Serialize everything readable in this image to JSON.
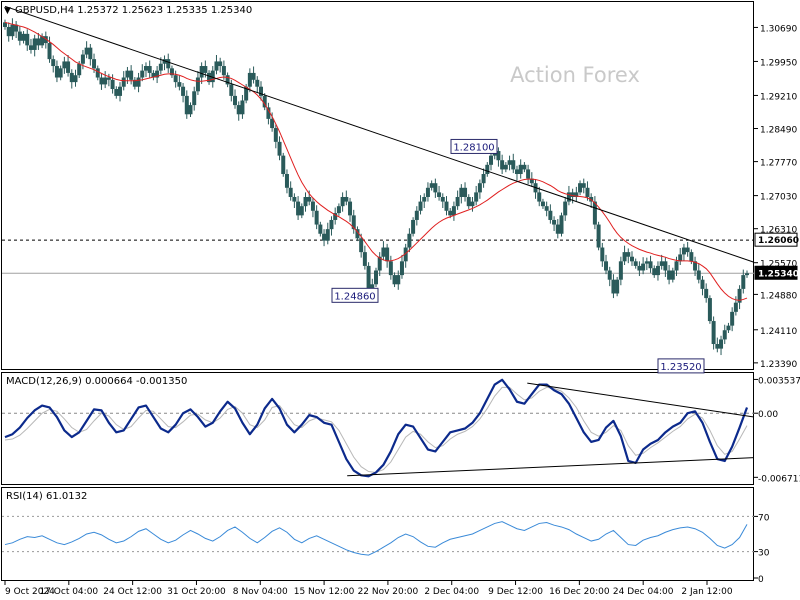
{
  "chart_data": [
    {
      "type": "candlestick",
      "symbol_header": "GBPUSD,H4  1.25372 1.25623 1.25335 1.25340",
      "watermark": "Action Forex",
      "y_range": [
        1.233,
        1.312
      ],
      "price_ticks": [
        "1.30690",
        "1.29950",
        "1.29210",
        "1.28490",
        "1.27770",
        "1.27030",
        "1.26310",
        "1.25570",
        "1.24880",
        "1.24110",
        "1.23390"
      ],
      "highlight_labels": [
        {
          "text": "1.26060",
          "price": 1.2606,
          "style": "dashed-level"
        },
        {
          "text": "1.25340",
          "price": 1.2534,
          "style": "current-price"
        }
      ],
      "annotations": [
        {
          "text": "1.28100",
          "price": 1.281
        },
        {
          "text": "1.24860",
          "price": 1.2486
        },
        {
          "text": "1.23520",
          "price": 1.2352
        }
      ],
      "ma_color": "#e02020",
      "candle_color": "#2a5a5a",
      "trendline_color": "#000000",
      "approx_closes": [
        1.307,
        1.305,
        1.3075,
        1.306,
        1.304,
        1.3055,
        1.303,
        1.302,
        1.3045,
        1.303,
        1.305,
        1.3035,
        1.3,
        1.2985,
        1.296,
        1.298,
        1.2995,
        1.297,
        1.295,
        1.2965,
        1.299,
        1.301,
        1.3025,
        1.3,
        1.298,
        1.296,
        1.2945,
        1.296,
        1.2955,
        1.2935,
        1.292,
        1.294,
        1.296,
        1.2975,
        1.2955,
        1.294,
        1.296,
        1.2975,
        1.2985,
        1.297,
        1.296,
        1.2975,
        1.299,
        1.3,
        1.298,
        1.2965,
        1.295,
        1.294,
        1.292,
        1.288,
        1.29,
        1.293,
        1.296,
        1.2985,
        1.297,
        1.295,
        1.2975,
        1.2995,
        1.2985,
        1.2965,
        1.2945,
        1.292,
        1.29,
        1.288,
        1.291,
        1.294,
        1.297,
        1.2955,
        1.294,
        1.292,
        1.2895,
        1.287,
        1.285,
        1.282,
        1.279,
        1.275,
        1.272,
        1.27,
        1.269,
        1.266,
        1.268,
        1.27,
        1.269,
        1.267,
        1.264,
        1.262,
        1.2605,
        1.263,
        1.265,
        1.2665,
        1.268,
        1.27,
        1.269,
        1.266,
        1.263,
        1.261,
        1.258,
        1.255,
        1.25,
        1.251,
        1.254,
        1.257,
        1.259,
        1.256,
        1.253,
        1.251,
        1.253,
        1.256,
        1.259,
        1.262,
        1.265,
        1.267,
        1.269,
        1.27,
        1.272,
        1.273,
        1.271,
        1.27,
        1.269,
        1.267,
        1.266,
        1.268,
        1.27,
        1.272,
        1.27,
        1.268,
        1.269,
        1.271,
        1.273,
        1.275,
        1.277,
        1.279,
        1.28,
        1.278,
        1.276,
        1.277,
        1.278,
        1.276,
        1.275,
        1.277,
        1.276,
        1.274,
        1.273,
        1.271,
        1.269,
        1.268,
        1.267,
        1.265,
        1.264,
        1.262,
        1.266,
        1.269,
        1.271,
        1.27,
        1.271,
        1.273,
        1.272,
        1.27,
        1.269,
        1.264,
        1.259,
        1.256,
        1.254,
        1.252,
        1.249,
        1.252,
        1.256,
        1.258,
        1.257,
        1.256,
        1.255,
        1.254,
        1.2555,
        1.256,
        1.2545,
        1.253,
        1.255,
        1.256,
        1.254,
        1.252,
        1.254,
        1.256,
        1.2575,
        1.259,
        1.258,
        1.256,
        1.254,
        1.252,
        1.25,
        1.248,
        1.243,
        1.238,
        1.237,
        1.239,
        1.241,
        1.242,
        1.245,
        1.247,
        1.25,
        1.253,
        1.2534
      ],
      "approx_ma": [
        1.308,
        1.3078,
        1.3076,
        1.3074,
        1.3072,
        1.307,
        1.3067,
        1.3063,
        1.3059,
        1.3054,
        1.3049,
        1.3044,
        1.3038,
        1.3032,
        1.3025,
        1.3018,
        1.3012,
        1.3006,
        1.3,
        1.2994,
        1.299,
        1.2986,
        1.2983,
        1.298,
        1.2977,
        1.2973,
        1.2969,
        1.2965,
        1.2962,
        1.2959,
        1.2956,
        1.2954,
        1.2953,
        1.2953,
        1.2953,
        1.2953,
        1.2954,
        1.2955,
        1.2957,
        1.2959,
        1.2961,
        1.2963,
        1.2965,
        1.2967,
        1.2968,
        1.2968,
        1.2967,
        1.2965,
        1.2962,
        1.2958,
        1.2955,
        1.2953,
        1.2952,
        1.2952,
        1.2953,
        1.2954,
        1.2956,
        1.2958,
        1.296,
        1.2961,
        1.296,
        1.2958,
        1.2954,
        1.2949,
        1.2944,
        1.2939,
        1.2934,
        1.2929,
        1.2922,
        1.2913,
        1.2902,
        1.2889,
        1.2875,
        1.2859,
        1.2842,
        1.2823,
        1.2804,
        1.2785,
        1.2766,
        1.2748,
        1.2732,
        1.2719,
        1.2707,
        1.2698,
        1.269,
        1.2683,
        1.2677,
        1.2671,
        1.2666,
        1.2661,
        1.2657,
        1.2652,
        1.2647,
        1.2641,
        1.2633,
        1.2624,
        1.2614,
        1.2603,
        1.2592,
        1.2581,
        1.2573,
        1.2567,
        1.2563,
        1.2561,
        1.2561,
        1.2563,
        1.2566,
        1.2571,
        1.2577,
        1.2584,
        1.2592,
        1.26,
        1.2608,
        1.2616,
        1.2624,
        1.2632,
        1.2639,
        1.2645,
        1.265,
        1.2654,
        1.2657,
        1.266,
        1.2663,
        1.2666,
        1.2669,
        1.2672,
        1.2675,
        1.2679,
        1.2683,
        1.2688,
        1.2693,
        1.2699,
        1.2705,
        1.2711,
        1.2716,
        1.2721,
        1.2726,
        1.273,
        1.2733,
        1.2736,
        1.2738,
        1.2739,
        1.2739,
        1.2738,
        1.2736,
        1.2733,
        1.2729,
        1.2725,
        1.272,
        1.2714,
        1.271,
        1.2707,
        1.2705,
        1.2703,
        1.2702,
        1.2701,
        1.27,
        1.2698,
        1.2694,
        1.2687,
        1.2678,
        1.2668,
        1.2657,
        1.2645,
        1.2632,
        1.2621,
        1.2612,
        1.2605,
        1.2599,
        1.2594,
        1.259,
        1.2586,
        1.2583,
        1.258,
        1.2578,
        1.2575,
        1.2573,
        1.2571,
        1.2569,
        1.2566,
        1.2564,
        1.2562,
        1.2561,
        1.2561,
        1.2561,
        1.256,
        1.2558,
        1.2555,
        1.255,
        1.2544,
        1.2535,
        1.2523,
        1.2511,
        1.25,
        1.2491,
        1.2484,
        1.2479,
        1.2476,
        1.2475,
        1.2477,
        1.248
      ],
      "trendline": {
        "start_price": 1.3115,
        "end_price": 1.2558
      }
    },
    {
      "type": "line",
      "indicator_header": "MACD(12,26,9) 0.000664 -0.001350",
      "y_range": [
        -0.0072,
        0.004
      ],
      "ticks": [
        {
          "text": "0.003537",
          "value": 0.003537
        },
        {
          "text": "0.00",
          "value": 0.0
        },
        {
          "text": "-0.006711",
          "value": -0.006711
        }
      ],
      "series": [
        {
          "role": "main",
          "color": "#0c2a8c",
          "values": [
            -0.0025,
            -0.0022,
            -0.0015,
            -0.0005,
            0.0003,
            0.0008,
            0.0006,
            -0.0004,
            -0.0018,
            -0.0025,
            -0.002,
            -0.0008,
            0.0004,
            0.0003,
            -0.001,
            -0.002,
            -0.0018,
            -0.0006,
            0.0006,
            0.0008,
            -0.0004,
            -0.0016,
            -0.002,
            -0.0012,
            0.0,
            0.0004,
            -0.0004,
            -0.0014,
            -0.001,
            0.0002,
            0.0012,
            0.0005,
            -0.001,
            -0.0022,
            -0.0012,
            0.0005,
            0.0015,
            0.0005,
            -0.0012,
            -0.002,
            -0.0012,
            -0.0002,
            -0.0004,
            -0.001,
            -0.0012,
            -0.003,
            -0.0048,
            -0.006,
            -0.0065,
            -0.0066,
            -0.0062,
            -0.0054,
            -0.004,
            -0.0022,
            -0.0012,
            -0.0014,
            -0.0026,
            -0.0038,
            -0.004,
            -0.003,
            -0.002,
            -0.0018,
            -0.0016,
            -0.001,
            0.0,
            0.0015,
            0.003,
            0.0035,
            0.0025,
            0.0012,
            0.001,
            0.002,
            0.003,
            0.003,
            0.0024,
            0.002,
            0.001,
            -0.0005,
            -0.002,
            -0.003,
            -0.0028,
            -0.0015,
            -0.0008,
            -0.0024,
            -0.005,
            -0.0052,
            -0.0038,
            -0.0032,
            -0.0028,
            -0.002,
            -0.0014,
            -0.001,
            0.0,
            0.0002,
            -0.001,
            -0.003,
            -0.0048,
            -0.005,
            -0.0035,
            -0.0015,
            0.0006
          ]
        },
        {
          "role": "signal",
          "color": "#b8b8b8",
          "values": [
            -0.0028,
            -0.0027,
            -0.0023,
            -0.0016,
            -0.0008,
            0.0,
            0.0004,
            0.0002,
            -0.0006,
            -0.0015,
            -0.002,
            -0.0017,
            -0.0008,
            0.0,
            -0.0003,
            -0.0012,
            -0.0017,
            -0.0014,
            -0.0005,
            0.0003,
            0.0002,
            -0.0006,
            -0.0014,
            -0.0015,
            -0.0009,
            -0.0002,
            -0.0001,
            -0.0007,
            -0.001,
            -0.0005,
            0.0004,
            0.0007,
            0.0,
            -0.0012,
            -0.0015,
            -0.0007,
            0.0006,
            0.0008,
            -0.0002,
            -0.0012,
            -0.0015,
            -0.0008,
            -0.0005,
            -0.0007,
            -0.0009,
            -0.0018,
            -0.0032,
            -0.0046,
            -0.0056,
            -0.0061,
            -0.0062,
            -0.0059,
            -0.0051,
            -0.0038,
            -0.0025,
            -0.0019,
            -0.0022,
            -0.003,
            -0.0036,
            -0.0034,
            -0.0027,
            -0.0022,
            -0.0019,
            -0.0014,
            -0.0006,
            0.0005,
            0.0018,
            0.0027,
            0.0027,
            0.002,
            0.0014,
            0.0016,
            0.0023,
            0.0027,
            0.0026,
            0.0023,
            0.0016,
            0.0006,
            -0.0008,
            -0.002,
            -0.0024,
            -0.002,
            -0.0013,
            -0.0018,
            -0.0034,
            -0.0044,
            -0.0042,
            -0.0036,
            -0.0031,
            -0.0025,
            -0.0019,
            -0.0014,
            -0.0006,
            -0.0001,
            -0.0005,
            -0.0018,
            -0.0034,
            -0.0043,
            -0.004,
            -0.0027,
            -0.0013
          ]
        }
      ],
      "trendlines": [
        {
          "from": {
            "bar": 47.5,
            "value": -0.00655
          },
          "to": {
            "bar": 116,
            "value": -0.00465
          }
        },
        {
          "from": {
            "bar": 72.5,
            "value": 0.00315
          },
          "to": {
            "bar": 116,
            "value": -0.0004
          }
        }
      ]
    },
    {
      "type": "line",
      "indicator_header": "RSI(14) 61.0132",
      "y_range": [
        0,
        100
      ],
      "ticks": [
        {
          "text": "70",
          "value": 70
        },
        {
          "text": "30",
          "value": 30
        },
        {
          "text": "0",
          "value": 0
        }
      ],
      "series": [
        {
          "color": "#3a8ad8",
          "values": [
            38,
            40,
            44,
            47,
            46,
            48,
            44,
            40,
            38,
            41,
            45,
            50,
            52,
            49,
            44,
            40,
            42,
            47,
            53,
            56,
            50,
            44,
            40,
            43,
            49,
            54,
            50,
            45,
            42,
            47,
            54,
            58,
            52,
            45,
            40,
            46,
            53,
            57,
            52,
            44,
            40,
            45,
            48,
            44,
            40,
            36,
            32,
            29,
            27,
            26,
            30,
            35,
            40,
            46,
            50,
            47,
            41,
            36,
            35,
            40,
            44,
            46,
            48,
            50,
            54,
            58,
            62,
            64,
            60,
            56,
            54,
            58,
            62,
            63,
            60,
            58,
            55,
            50,
            46,
            42,
            44,
            50,
            54,
            46,
            38,
            37,
            43,
            46,
            48,
            52,
            55,
            57,
            58,
            56,
            52,
            45,
            37,
            34,
            38,
            46,
            61
          ]
        }
      ]
    }
  ],
  "time_axis": {
    "labels": [
      "9 Oct 2024",
      "17 Oct 04:00",
      "24 Oct 12:00",
      "31 Oct 20:00",
      "8 Nov 04:00",
      "15 Nov 12:00",
      "22 Nov 20:00",
      "2 Dec 04:00",
      "9 Dec 12:00",
      "16 Dec 20:00",
      "24 Dec 04:00",
      "2 Jan 12:00"
    ]
  }
}
